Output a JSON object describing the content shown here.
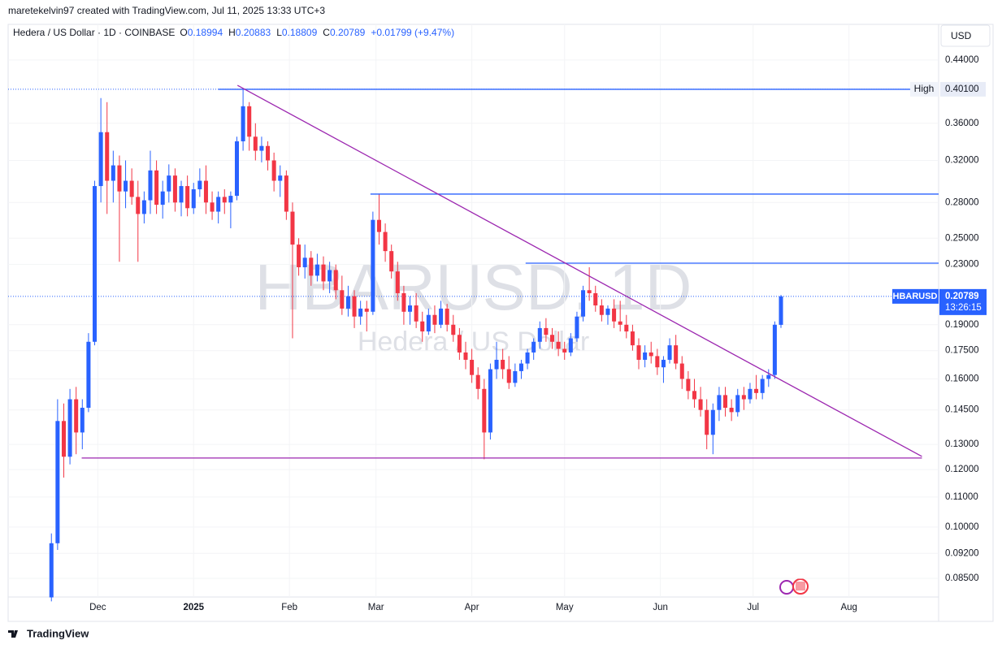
{
  "attribution": "maretekelvin97 created with TradingView.com, Jul 11, 2025 13:33 UTC+3",
  "footer": "TradingView",
  "chart_data": {
    "type": "candlestick",
    "title": "Hedera / US Dollar · 1D · COINBASE",
    "header_fields": [
      {
        "label": "O",
        "value": "0.18994"
      },
      {
        "label": "H",
        "value": "0.20883"
      },
      {
        "label": "L",
        "value": "0.18809"
      },
      {
        "label": "C",
        "value": "0.20789"
      }
    ],
    "change": "+0.01799 (+9.47%)",
    "currency": "USD",
    "watermark": "HBARUSD, 1D",
    "watermark_subtitle": "Hedera / US Dollar",
    "log_scale": true,
    "grid": true,
    "up_color": "#2962ff",
    "down_color": "#f23645",
    "ohlc": [
      [
        0.08,
        0.098,
        0.079,
        0.095
      ],
      [
        0.095,
        0.15,
        0.093,
        0.14
      ],
      [
        0.14,
        0.148,
        0.117,
        0.125
      ],
      [
        0.125,
        0.155,
        0.122,
        0.15
      ],
      [
        0.15,
        0.156,
        0.126,
        0.135
      ],
      [
        0.135,
        0.15,
        0.128,
        0.146
      ],
      [
        0.146,
        0.185,
        0.144,
        0.18
      ],
      [
        0.18,
        0.3,
        0.178,
        0.295
      ],
      [
        0.295,
        0.39,
        0.28,
        0.35
      ],
      [
        0.35,
        0.385,
        0.27,
        0.3
      ],
      [
        0.3,
        0.33,
        0.28,
        0.315
      ],
      [
        0.315,
        0.325,
        0.232,
        0.29
      ],
      [
        0.29,
        0.32,
        0.275,
        0.3
      ],
      [
        0.3,
        0.312,
        0.278,
        0.285
      ],
      [
        0.285,
        0.3,
        0.232,
        0.27
      ],
      [
        0.27,
        0.29,
        0.262,
        0.282
      ],
      [
        0.282,
        0.33,
        0.27,
        0.31
      ],
      [
        0.31,
        0.32,
        0.27,
        0.278
      ],
      [
        0.278,
        0.3,
        0.266,
        0.29
      ],
      [
        0.29,
        0.316,
        0.28,
        0.305
      ],
      [
        0.305,
        0.312,
        0.272,
        0.28
      ],
      [
        0.28,
        0.3,
        0.268,
        0.295
      ],
      [
        0.295,
        0.305,
        0.268,
        0.275
      ],
      [
        0.275,
        0.298,
        0.27,
        0.292
      ],
      [
        0.292,
        0.312,
        0.285,
        0.3
      ],
      [
        0.3,
        0.315,
        0.27,
        0.28
      ],
      [
        0.28,
        0.29,
        0.265,
        0.272
      ],
      [
        0.272,
        0.29,
        0.262,
        0.285
      ],
      [
        0.285,
        0.292,
        0.27,
        0.28
      ],
      [
        0.28,
        0.29,
        0.258,
        0.286
      ],
      [
        0.286,
        0.345,
        0.282,
        0.34
      ],
      [
        0.34,
        0.402,
        0.33,
        0.38
      ],
      [
        0.38,
        0.385,
        0.33,
        0.345
      ],
      [
        0.345,
        0.36,
        0.32,
        0.33
      ],
      [
        0.33,
        0.345,
        0.318,
        0.335
      ],
      [
        0.335,
        0.34,
        0.31,
        0.32
      ],
      [
        0.32,
        0.328,
        0.29,
        0.3
      ],
      [
        0.3,
        0.315,
        0.285,
        0.305
      ],
      [
        0.305,
        0.31,
        0.265,
        0.272
      ],
      [
        0.272,
        0.28,
        0.182,
        0.245
      ],
      [
        0.245,
        0.25,
        0.222,
        0.228
      ],
      [
        0.228,
        0.245,
        0.22,
        0.235
      ],
      [
        0.235,
        0.24,
        0.215,
        0.222
      ],
      [
        0.222,
        0.238,
        0.218,
        0.23
      ],
      [
        0.23,
        0.236,
        0.212,
        0.218
      ],
      [
        0.218,
        0.232,
        0.21,
        0.226
      ],
      [
        0.226,
        0.23,
        0.206,
        0.212
      ],
      [
        0.212,
        0.222,
        0.196,
        0.2
      ],
      [
        0.2,
        0.215,
        0.195,
        0.208
      ],
      [
        0.208,
        0.212,
        0.188,
        0.195
      ],
      [
        0.195,
        0.205,
        0.19,
        0.2
      ],
      [
        0.2,
        0.205,
        0.186,
        0.198
      ],
      [
        0.198,
        0.272,
        0.196,
        0.265
      ],
      [
        0.265,
        0.288,
        0.245,
        0.255
      ],
      [
        0.255,
        0.262,
        0.232,
        0.24
      ],
      [
        0.24,
        0.245,
        0.22,
        0.225
      ],
      [
        0.225,
        0.232,
        0.205,
        0.21
      ],
      [
        0.21,
        0.215,
        0.19,
        0.198
      ],
      [
        0.198,
        0.208,
        0.19,
        0.202
      ],
      [
        0.202,
        0.21,
        0.188,
        0.192
      ],
      [
        0.192,
        0.198,
        0.18,
        0.186
      ],
      [
        0.186,
        0.2,
        0.184,
        0.196
      ],
      [
        0.196,
        0.202,
        0.185,
        0.19
      ],
      [
        0.19,
        0.205,
        0.188,
        0.2
      ],
      [
        0.2,
        0.203,
        0.186,
        0.19
      ],
      [
        0.19,
        0.196,
        0.18,
        0.184
      ],
      [
        0.184,
        0.188,
        0.17,
        0.174
      ],
      [
        0.174,
        0.18,
        0.165,
        0.17
      ],
      [
        0.17,
        0.176,
        0.158,
        0.162
      ],
      [
        0.162,
        0.166,
        0.15,
        0.155
      ],
      [
        0.155,
        0.16,
        0.124,
        0.135
      ],
      [
        0.135,
        0.168,
        0.132,
        0.165
      ],
      [
        0.165,
        0.18,
        0.16,
        0.17
      ],
      [
        0.17,
        0.176,
        0.16,
        0.165
      ],
      [
        0.165,
        0.172,
        0.155,
        0.158
      ],
      [
        0.158,
        0.168,
        0.156,
        0.164
      ],
      [
        0.164,
        0.17,
        0.16,
        0.168
      ],
      [
        0.168,
        0.176,
        0.165,
        0.174
      ],
      [
        0.174,
        0.182,
        0.17,
        0.18
      ],
      [
        0.18,
        0.192,
        0.176,
        0.188
      ],
      [
        0.188,
        0.194,
        0.18,
        0.184
      ],
      [
        0.184,
        0.188,
        0.176,
        0.18
      ],
      [
        0.18,
        0.186,
        0.172,
        0.176
      ],
      [
        0.176,
        0.18,
        0.17,
        0.174
      ],
      [
        0.174,
        0.185,
        0.172,
        0.182
      ],
      [
        0.182,
        0.198,
        0.18,
        0.195
      ],
      [
        0.195,
        0.215,
        0.192,
        0.212
      ],
      [
        0.212,
        0.228,
        0.205,
        0.21
      ],
      [
        0.21,
        0.215,
        0.198,
        0.202
      ],
      [
        0.202,
        0.206,
        0.192,
        0.196
      ],
      [
        0.196,
        0.202,
        0.19,
        0.2
      ],
      [
        0.2,
        0.206,
        0.188,
        0.192
      ],
      [
        0.192,
        0.205,
        0.186,
        0.19
      ],
      [
        0.19,
        0.196,
        0.182,
        0.186
      ],
      [
        0.186,
        0.19,
        0.175,
        0.178
      ],
      [
        0.178,
        0.182,
        0.165,
        0.17
      ],
      [
        0.17,
        0.178,
        0.166,
        0.174
      ],
      [
        0.174,
        0.18,
        0.168,
        0.172
      ],
      [
        0.172,
        0.176,
        0.162,
        0.166
      ],
      [
        0.166,
        0.172,
        0.158,
        0.17
      ],
      [
        0.17,
        0.182,
        0.168,
        0.178
      ],
      [
        0.178,
        0.184,
        0.165,
        0.168
      ],
      [
        0.168,
        0.172,
        0.155,
        0.16
      ],
      [
        0.16,
        0.164,
        0.15,
        0.154
      ],
      [
        0.154,
        0.16,
        0.146,
        0.15
      ],
      [
        0.15,
        0.156,
        0.142,
        0.145
      ],
      [
        0.145,
        0.15,
        0.128,
        0.134
      ],
      [
        0.134,
        0.148,
        0.126,
        0.145
      ],
      [
        0.145,
        0.156,
        0.14,
        0.152
      ],
      [
        0.152,
        0.156,
        0.142,
        0.146
      ],
      [
        0.146,
        0.15,
        0.14,
        0.144
      ],
      [
        0.144,
        0.155,
        0.142,
        0.152
      ],
      [
        0.152,
        0.156,
        0.145,
        0.15
      ],
      [
        0.15,
        0.158,
        0.148,
        0.155
      ],
      [
        0.155,
        0.162,
        0.15,
        0.153
      ],
      [
        0.153,
        0.162,
        0.15,
        0.16
      ],
      [
        0.16,
        0.165,
        0.156,
        0.162
      ],
      [
        0.162,
        0.192,
        0.16,
        0.19
      ],
      [
        0.18994,
        0.20883,
        0.18809,
        0.20789
      ]
    ],
    "xlim": [
      -7,
      143.5
    ],
    "xticks": [
      {
        "value": 7.5,
        "label": "Dec"
      },
      {
        "value": 23,
        "label": "2025"
      },
      {
        "value": 38.5,
        "label": "Feb"
      },
      {
        "value": 52.5,
        "label": "Mar"
      },
      {
        "value": 68,
        "label": "Apr"
      },
      {
        "value": 83,
        "label": "May"
      },
      {
        "value": 98.5,
        "label": "Jun"
      },
      {
        "value": 113.5,
        "label": "Jul"
      },
      {
        "value": 129,
        "label": "Aug"
      }
    ],
    "ylim": [
      0.0801,
      0.4927
    ],
    "yticks": [
      {
        "value": 0.44,
        "label": "0.44000"
      },
      {
        "value": 0.36,
        "label": "0.36000"
      },
      {
        "value": 0.32,
        "label": "0.32000"
      },
      {
        "value": 0.28,
        "label": "0.28000"
      },
      {
        "value": 0.25,
        "label": "0.25000"
      },
      {
        "value": 0.23,
        "label": "0.23000"
      },
      {
        "value": 0.19,
        "label": "0.19000"
      },
      {
        "value": 0.175,
        "label": "0.17500"
      },
      {
        "value": 0.16,
        "label": "0.16000"
      },
      {
        "value": 0.145,
        "label": "0.14500"
      },
      {
        "value": 0.13,
        "label": "0.13000"
      },
      {
        "value": 0.12,
        "label": "0.12000"
      },
      {
        "value": 0.11,
        "label": "0.11000"
      },
      {
        "value": 0.1,
        "label": "0.10000"
      },
      {
        "value": 0.092,
        "label": "0.09200"
      },
      {
        "value": 0.085,
        "label": "0.08500"
      }
    ],
    "drawings": [
      {
        "x": [
          27,
          139
        ],
        "y": [
          0.401,
          0.401
        ],
        "color": "#2962ff"
      },
      {
        "x": [
          51.6,
          143.5
        ],
        "y": [
          0.2876,
          0.2876
        ],
        "color": "#2962ff"
      },
      {
        "x": [
          76.7,
          143.5
        ],
        "y": [
          0.231,
          0.231
        ],
        "color": "#2962ff"
      },
      {
        "x": [
          30.1,
          140.8
        ],
        "y": [
          0.406,
          0.1251
        ],
        "color": "#9c27b0"
      },
      {
        "x": [
          4.9,
          140.8
        ],
        "y": [
          0.1245,
          0.1245
        ],
        "color": "#9c27b0"
      }
    ],
    "high_marker": {
      "label": "High",
      "value": 0.401,
      "value_label": "0.40100"
    },
    "last_price": {
      "symbol": "HBARUSD",
      "value": 0.20789,
      "value_label": "0.20789",
      "countdown": "13:26:15"
    }
  }
}
